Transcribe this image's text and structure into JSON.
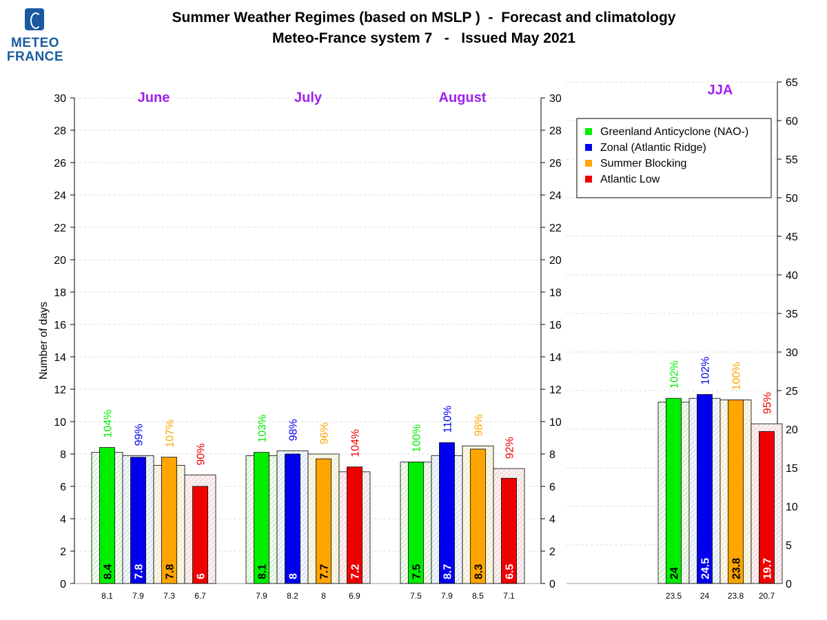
{
  "logo": {
    "line1": "METEO",
    "line2": "FRANCE"
  },
  "title": {
    "line1": "Summer Weather Regimes (based on MSLP )  -  Forecast and climatology",
    "line2": "Meteo-France system 7   -   Issued May 2021"
  },
  "colors": {
    "green": "#00ee00",
    "blue": "#0000ee",
    "orange": "#ffa500",
    "red": "#ee0000",
    "month_label": "#a020f0"
  },
  "chart_data": {
    "type": "bar",
    "ylabel": "Number of days",
    "ylim_months": [
      0,
      30
    ],
    "yticks_months": [
      0,
      2,
      4,
      6,
      8,
      10,
      12,
      14,
      16,
      18,
      20,
      22,
      24,
      26,
      28,
      30
    ],
    "ylim_jja": [
      0,
      65
    ],
    "yticks_jja": [
      0,
      5,
      10,
      15,
      20,
      25,
      30,
      35,
      40,
      45,
      50,
      55,
      60,
      65
    ],
    "grid": "dashed",
    "legend_position": "top-right",
    "series": [
      {
        "name": "Greenland Anticyclone (NAO-)",
        "color_key": "green"
      },
      {
        "name": "Zonal (Atlantic Ridge)",
        "color_key": "blue"
      },
      {
        "name": "Summer Blocking",
        "color_key": "orange"
      },
      {
        "name": "Atlantic Low",
        "color_key": "red"
      }
    ],
    "groups": [
      {
        "label": "June",
        "axis": "left",
        "forecast": [
          8.4,
          7.8,
          7.8,
          6
        ],
        "forecast_labels": [
          "8.4",
          "7.8",
          "7.8",
          "6"
        ],
        "climatology": [
          8.1,
          7.9,
          7.3,
          6.7
        ],
        "climatology_labels": [
          "8.1",
          "7.9",
          "7.3",
          "6.7"
        ],
        "percent": [
          "104%",
          "99%",
          "107%",
          "90%"
        ]
      },
      {
        "label": "July",
        "axis": "left",
        "forecast": [
          8.1,
          8,
          7.7,
          7.2
        ],
        "forecast_labels": [
          "8.1",
          "8",
          "7.7",
          "7.2"
        ],
        "climatology": [
          7.9,
          8.2,
          8,
          6.9
        ],
        "climatology_labels": [
          "7.9",
          "8.2",
          "8",
          "6.9"
        ],
        "percent": [
          "103%",
          "98%",
          "96%",
          "104%"
        ]
      },
      {
        "label": "August",
        "axis": "left",
        "forecast": [
          7.5,
          8.7,
          8.3,
          6.5
        ],
        "forecast_labels": [
          "7.5",
          "8.7",
          "8.3",
          "6.5"
        ],
        "climatology": [
          7.5,
          7.9,
          8.5,
          7.1
        ],
        "climatology_labels": [
          "7.5",
          "7.9",
          "8.5",
          "7.1"
        ],
        "percent": [
          "100%",
          "110%",
          "98%",
          "92%"
        ]
      },
      {
        "label": "JJA",
        "axis": "right",
        "forecast": [
          24,
          24.5,
          23.8,
          19.7
        ],
        "forecast_labels": [
          "24",
          "24.5",
          "23.8",
          "19.7"
        ],
        "climatology": [
          23.5,
          24,
          23.8,
          20.7
        ],
        "climatology_labels": [
          "23.5",
          "24",
          "23.8",
          "20.7"
        ],
        "percent": [
          "102%",
          "102%",
          "100%",
          "95%"
        ]
      }
    ]
  }
}
